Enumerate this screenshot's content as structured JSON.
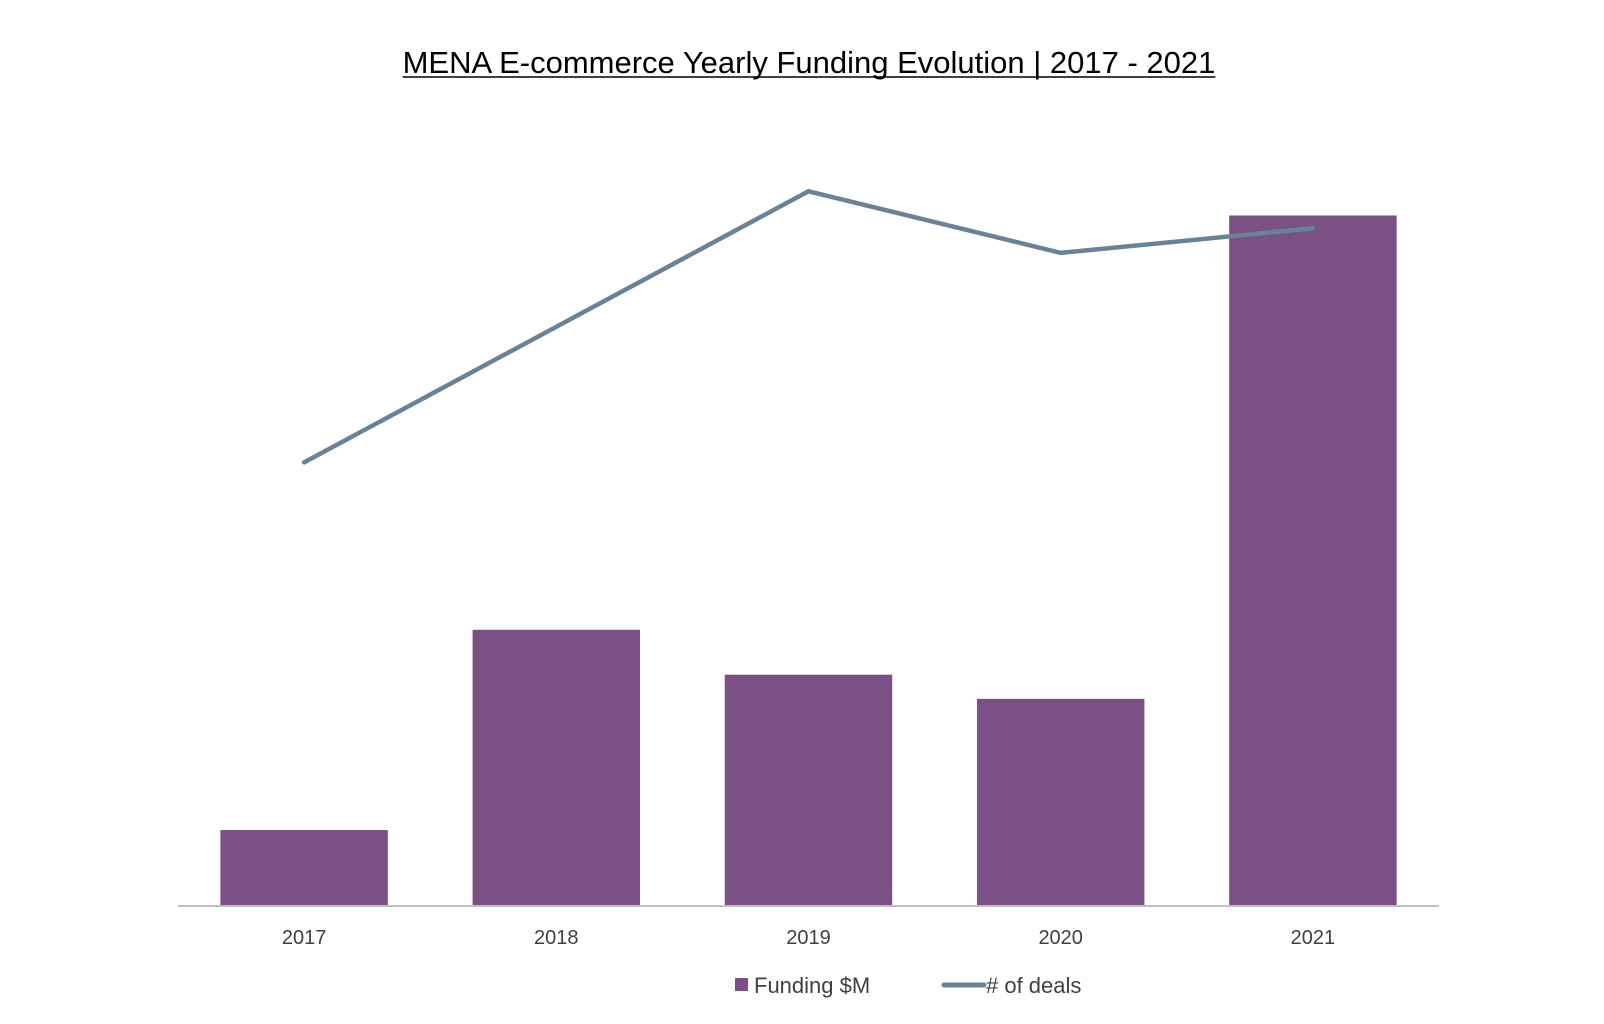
{
  "chart_data": {
    "type": "bar",
    "title": "MENA E-commerce Yearly Funding Evolution | 2017 - 2021",
    "xlabel": "",
    "ylabel": "",
    "categories": [
      "2017",
      "2018",
      "2019",
      "2020",
      "2021"
    ],
    "series": [
      {
        "name": "Funding $M",
        "type": "bar",
        "axis": "left",
        "values": [
          11,
          40,
          33.5,
          30,
          100
        ],
        "color": "#7B5084"
      },
      {
        "name": "# of deals",
        "type": "line",
        "axis": "right",
        "values": [
          76,
          87,
          98,
          93,
          95
        ],
        "color": "#6B8296"
      }
    ],
    "ylim": [
      0,
      116
    ],
    "y2lim": [
      40,
      105
    ],
    "grid": false,
    "legend": "bottom"
  }
}
